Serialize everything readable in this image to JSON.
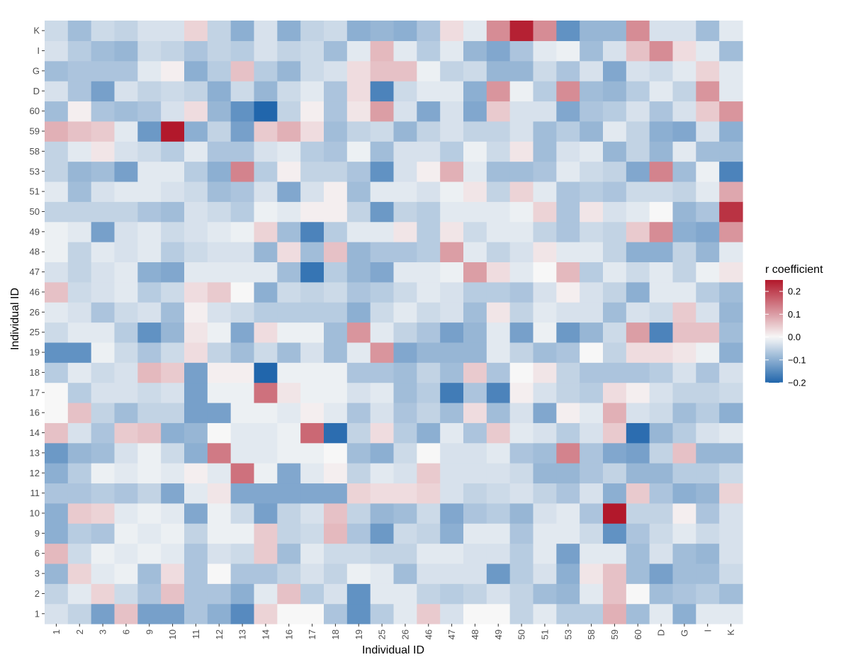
{
  "chart_data": {
    "type": "heatmap",
    "title": "",
    "xlabel": "Individual ID",
    "ylabel": "Individual ID",
    "x_categories": [
      "1",
      "2",
      "3",
      "6",
      "9",
      "10",
      "11",
      "12",
      "13",
      "14",
      "16",
      "17",
      "18",
      "19",
      "25",
      "26",
      "46",
      "47",
      "48",
      "49",
      "50",
      "51",
      "53",
      "58",
      "59",
      "60",
      "D",
      "G",
      "I",
      "K"
    ],
    "y_categories": [
      "1",
      "2",
      "3",
      "6",
      "9",
      "10",
      "11",
      "12",
      "13",
      "14",
      "16",
      "17",
      "18",
      "19",
      "25",
      "26",
      "46",
      "47",
      "48",
      "49",
      "50",
      "51",
      "53",
      "58",
      "59",
      "60",
      "D",
      "G",
      "I",
      "K"
    ],
    "legend": {
      "title": "r coefficient",
      "position": "right",
      "range": [
        -0.2,
        0.25
      ],
      "ticks": [
        0.2,
        0.1,
        0.0,
        -0.1,
        -0.2
      ],
      "tick_labels": [
        "0.2",
        "0.1",
        "0.0",
        "−0.1",
        "−0.2"
      ]
    },
    "colors": {
      "low": "#2166ac",
      "mid": "#f7f7f7",
      "high": "#b2182b",
      "axis_text": "#4d4d4d"
    },
    "values": [
      [
        -0.03,
        -0.05,
        -0.12,
        0.06,
        -0.12,
        -0.12,
        -0.07,
        -0.1,
        -0.15,
        0.04,
        0.0,
        0.0,
        -0.07,
        -0.14,
        -0.06,
        -0.02,
        0.05,
        -0.03,
        0.0,
        0.0,
        -0.05,
        -0.02,
        -0.06,
        -0.06,
        0.08,
        -0.08,
        -0.02,
        -0.1,
        -0.02,
        -0.02
      ],
      [
        -0.05,
        -0.02,
        0.04,
        -0.04,
        -0.07,
        0.06,
        -0.07,
        -0.07,
        -0.1,
        -0.02,
        0.06,
        -0.06,
        -0.03,
        -0.14,
        -0.02,
        -0.02,
        -0.05,
        -0.06,
        -0.05,
        -0.03,
        -0.05,
        -0.08,
        -0.09,
        -0.02,
        0.06,
        0.0,
        -0.08,
        -0.07,
        -0.06,
        -0.08
      ],
      [
        -0.09,
        0.04,
        -0.02,
        -0.01,
        -0.08,
        0.03,
        -0.07,
        0.0,
        -0.07,
        -0.07,
        -0.05,
        -0.03,
        -0.05,
        -0.01,
        -0.02,
        -0.08,
        -0.03,
        -0.03,
        -0.03,
        -0.13,
        -0.06,
        -0.03,
        -0.1,
        0.02,
        0.06,
        -0.08,
        -0.12,
        -0.08,
        -0.08,
        -0.04
      ],
      [
        0.07,
        -0.04,
        -0.01,
        -0.02,
        -0.01,
        -0.02,
        -0.07,
        -0.03,
        -0.04,
        0.05,
        -0.08,
        -0.02,
        -0.04,
        -0.04,
        -0.05,
        -0.05,
        -0.02,
        -0.02,
        -0.03,
        -0.03,
        -0.06,
        -0.02,
        -0.12,
        -0.02,
        -0.02,
        -0.08,
        -0.03,
        -0.08,
        -0.09,
        -0.03
      ],
      [
        -0.1,
        -0.06,
        -0.07,
        -0.01,
        -0.02,
        -0.01,
        -0.05,
        -0.01,
        -0.01,
        0.05,
        -0.05,
        -0.04,
        0.07,
        -0.07,
        -0.13,
        -0.04,
        -0.05,
        -0.1,
        -0.02,
        -0.02,
        -0.07,
        -0.02,
        -0.02,
        -0.04,
        -0.14,
        -0.07,
        -0.04,
        -0.02,
        -0.04,
        -0.03
      ],
      [
        -0.1,
        0.05,
        0.04,
        -0.02,
        -0.01,
        -0.02,
        -0.11,
        -0.01,
        -0.04,
        -0.12,
        -0.05,
        -0.03,
        0.06,
        -0.05,
        -0.09,
        -0.08,
        -0.04,
        -0.11,
        -0.07,
        -0.06,
        -0.09,
        -0.03,
        -0.02,
        -0.07,
        0.25,
        -0.05,
        -0.05,
        0.01,
        -0.07,
        -0.03
      ],
      [
        -0.07,
        -0.07,
        -0.06,
        -0.07,
        -0.05,
        -0.11,
        -0.02,
        0.02,
        -0.11,
        -0.11,
        -0.11,
        -0.11,
        -0.11,
        0.04,
        0.03,
        0.03,
        0.04,
        -0.03,
        -0.05,
        -0.04,
        -0.03,
        -0.05,
        -0.07,
        -0.03,
        -0.1,
        0.05,
        -0.07,
        -0.1,
        -0.09,
        0.04
      ],
      [
        -0.1,
        -0.06,
        -0.01,
        -0.02,
        -0.01,
        -0.02,
        0.01,
        -0.02,
        0.15,
        -0.01,
        -0.11,
        -0.02,
        0.01,
        -0.05,
        -0.02,
        -0.03,
        0.05,
        -0.03,
        -0.03,
        -0.03,
        -0.04,
        -0.09,
        -0.09,
        -0.07,
        -0.05,
        -0.09,
        -0.09,
        -0.06,
        -0.06,
        -0.04
      ],
      [
        -0.13,
        -0.09,
        -0.08,
        -0.03,
        -0.01,
        -0.04,
        -0.1,
        0.14,
        -0.02,
        -0.02,
        -0.01,
        -0.01,
        0.0,
        -0.08,
        -0.1,
        -0.04,
        0.0,
        -0.03,
        -0.03,
        -0.02,
        -0.07,
        -0.08,
        0.13,
        -0.07,
        -0.11,
        -0.12,
        -0.05,
        0.06,
        -0.09,
        -0.09
      ],
      [
        0.06,
        -0.03,
        -0.07,
        0.05,
        0.06,
        -0.1,
        -0.09,
        0.0,
        -0.02,
        -0.02,
        -0.01,
        0.16,
        -0.19,
        -0.05,
        0.03,
        -0.06,
        -0.1,
        -0.02,
        -0.07,
        0.05,
        -0.02,
        -0.03,
        -0.06,
        -0.03,
        0.05,
        -0.19,
        -0.09,
        -0.06,
        -0.03,
        -0.02
      ],
      [
        0.0,
        0.06,
        -0.05,
        -0.08,
        -0.05,
        -0.05,
        -0.12,
        -0.12,
        -0.01,
        -0.01,
        -0.02,
        0.01,
        -0.02,
        -0.07,
        -0.03,
        -0.07,
        -0.05,
        -0.08,
        0.03,
        -0.08,
        -0.03,
        -0.11,
        0.01,
        -0.02,
        0.08,
        -0.03,
        -0.04,
        -0.08,
        -0.06,
        -0.1
      ],
      [
        0.0,
        -0.06,
        -0.03,
        -0.03,
        -0.04,
        -0.03,
        -0.12,
        -0.01,
        -0.01,
        0.15,
        0.02,
        -0.01,
        -0.01,
        -0.03,
        -0.02,
        -0.08,
        -0.06,
        -0.17,
        -0.07,
        -0.16,
        0.01,
        -0.03,
        -0.05,
        -0.06,
        0.03,
        0.01,
        -0.03,
        -0.05,
        -0.05,
        -0.04
      ],
      [
        -0.06,
        -0.02,
        -0.04,
        -0.03,
        0.07,
        0.05,
        -0.12,
        0.01,
        0.01,
        -0.2,
        -0.01,
        -0.01,
        -0.01,
        -0.07,
        -0.07,
        -0.08,
        -0.05,
        -0.08,
        0.05,
        -0.07,
        0.0,
        0.02,
        -0.05,
        -0.07,
        -0.07,
        -0.07,
        -0.06,
        -0.03,
        -0.07,
        -0.03
      ],
      [
        -0.14,
        -0.14,
        -0.01,
        -0.04,
        -0.07,
        -0.04,
        0.03,
        -0.05,
        -0.08,
        -0.04,
        -0.08,
        -0.03,
        -0.08,
        -0.02,
        0.11,
        -0.11,
        -0.09,
        -0.09,
        -0.09,
        -0.02,
        -0.05,
        -0.08,
        -0.07,
        0.0,
        -0.05,
        0.03,
        0.03,
        0.02,
        -0.01,
        -0.1
      ],
      [
        -0.04,
        -0.02,
        -0.02,
        -0.06,
        -0.14,
        -0.09,
        0.02,
        -0.01,
        -0.11,
        0.03,
        -0.01,
        -0.01,
        -0.08,
        0.11,
        -0.02,
        -0.05,
        -0.07,
        -0.12,
        -0.09,
        -0.02,
        -0.12,
        -0.01,
        -0.13,
        -0.09,
        -0.04,
        0.1,
        -0.16,
        0.06,
        0.06,
        -0.08
      ],
      [
        -0.02,
        -0.03,
        -0.07,
        -0.04,
        -0.03,
        -0.08,
        0.01,
        -0.03,
        -0.04,
        -0.06,
        -0.06,
        -0.06,
        -0.06,
        -0.1,
        -0.04,
        -0.02,
        -0.04,
        -0.03,
        -0.08,
        0.02,
        -0.05,
        -0.02,
        -0.03,
        -0.03,
        -0.08,
        -0.03,
        -0.04,
        0.05,
        -0.03,
        -0.09
      ],
      [
        0.06,
        -0.04,
        -0.03,
        -0.02,
        -0.06,
        -0.04,
        0.03,
        0.05,
        0.0,
        -0.1,
        -0.04,
        -0.05,
        -0.04,
        -0.07,
        -0.06,
        -0.04,
        -0.02,
        -0.03,
        -0.06,
        -0.06,
        -0.07,
        -0.03,
        0.01,
        -0.03,
        -0.05,
        -0.1,
        -0.02,
        -0.02,
        -0.06,
        -0.08
      ],
      [
        -0.03,
        -0.05,
        -0.03,
        -0.02,
        -0.1,
        -0.11,
        -0.02,
        -0.02,
        -0.02,
        -0.02,
        -0.08,
        -0.18,
        -0.06,
        -0.09,
        -0.11,
        -0.02,
        -0.02,
        -0.01,
        0.1,
        0.03,
        -0.02,
        0.0,
        0.07,
        -0.06,
        -0.02,
        -0.04,
        -0.02,
        -0.05,
        -0.01,
        0.02
      ],
      [
        -0.01,
        -0.05,
        -0.02,
        -0.03,
        -0.02,
        -0.06,
        -0.04,
        -0.03,
        -0.03,
        -0.09,
        0.03,
        -0.08,
        0.06,
        -0.09,
        -0.07,
        -0.07,
        -0.06,
        0.1,
        -0.02,
        -0.05,
        -0.03,
        0.02,
        -0.02,
        -0.02,
        -0.05,
        -0.1,
        -0.1,
        -0.05,
        -0.09,
        -0.02
      ],
      [
        -0.01,
        -0.02,
        -0.12,
        -0.03,
        -0.02,
        -0.04,
        -0.03,
        -0.02,
        -0.01,
        0.04,
        -0.08,
        -0.16,
        -0.06,
        -0.02,
        -0.02,
        0.02,
        -0.06,
        0.02,
        -0.04,
        -0.02,
        -0.02,
        -0.05,
        -0.07,
        -0.04,
        -0.05,
        0.05,
        0.12,
        -0.1,
        -0.11,
        0.11
      ],
      [
        -0.05,
        -0.05,
        -0.05,
        -0.05,
        -0.07,
        -0.08,
        -0.03,
        -0.04,
        -0.06,
        -0.01,
        -0.02,
        0.01,
        0.01,
        -0.05,
        -0.13,
        -0.05,
        -0.06,
        -0.02,
        -0.02,
        -0.02,
        -0.01,
        0.04,
        -0.07,
        0.02,
        -0.03,
        -0.02,
        0.0,
        -0.09,
        -0.07,
        0.22
      ],
      [
        -0.02,
        -0.08,
        -0.03,
        -0.02,
        -0.02,
        -0.03,
        -0.04,
        -0.08,
        -0.07,
        -0.03,
        -0.11,
        -0.03,
        0.01,
        -0.08,
        -0.02,
        -0.02,
        -0.03,
        -0.01,
        0.02,
        -0.05,
        0.04,
        -0.02,
        -0.07,
        -0.06,
        -0.07,
        -0.04,
        -0.04,
        -0.05,
        -0.02,
        0.09
      ],
      [
        -0.05,
        -0.09,
        -0.08,
        -0.12,
        -0.02,
        -0.02,
        -0.06,
        -0.1,
        0.13,
        -0.06,
        0.01,
        -0.05,
        -0.05,
        -0.07,
        -0.14,
        -0.03,
        0.01,
        0.08,
        -0.02,
        -0.08,
        -0.08,
        -0.07,
        -0.02,
        -0.04,
        -0.05,
        -0.11,
        0.13,
        -0.08,
        -0.01,
        -0.16
      ],
      [
        -0.05,
        -0.02,
        0.02,
        -0.03,
        -0.04,
        -0.06,
        -0.02,
        -0.07,
        -0.07,
        -0.03,
        -0.02,
        -0.06,
        -0.07,
        -0.01,
        -0.08,
        -0.03,
        -0.03,
        -0.06,
        -0.01,
        -0.04,
        0.02,
        -0.08,
        -0.03,
        -0.02,
        -0.09,
        -0.05,
        -0.09,
        -0.02,
        -0.08,
        -0.08
      ],
      [
        0.08,
        0.06,
        0.05,
        -0.02,
        -0.13,
        0.25,
        -0.1,
        -0.05,
        -0.12,
        0.05,
        0.08,
        0.03,
        -0.08,
        -0.05,
        -0.04,
        -0.09,
        -0.05,
        -0.03,
        -0.05,
        -0.05,
        -0.03,
        -0.08,
        -0.06,
        -0.09,
        -0.02,
        -0.05,
        -0.1,
        -0.11,
        -0.03,
        -0.1
      ],
      [
        -0.08,
        0.01,
        -0.07,
        -0.08,
        -0.07,
        -0.03,
        0.03,
        -0.09,
        -0.14,
        -0.2,
        -0.05,
        0.01,
        -0.07,
        0.02,
        0.1,
        -0.03,
        -0.11,
        -0.03,
        -0.11,
        0.05,
        -0.03,
        -0.03,
        -0.11,
        -0.07,
        -0.06,
        -0.03,
        -0.07,
        -0.03,
        0.05,
        0.11
      ],
      [
        -0.03,
        -0.07,
        -0.12,
        -0.03,
        -0.05,
        -0.04,
        -0.05,
        -0.1,
        -0.04,
        -0.09,
        -0.04,
        -0.02,
        -0.07,
        0.03,
        -0.16,
        -0.04,
        -0.02,
        -0.02,
        -0.1,
        0.11,
        -0.01,
        -0.06,
        0.12,
        -0.08,
        -0.09,
        -0.06,
        -0.02,
        -0.05,
        0.11,
        -0.02
      ],
      [
        -0.08,
        -0.07,
        -0.07,
        -0.07,
        -0.02,
        0.01,
        -0.1,
        -0.06,
        0.06,
        -0.06,
        -0.09,
        -0.04,
        -0.03,
        0.03,
        0.06,
        0.06,
        -0.01,
        -0.05,
        -0.04,
        -0.09,
        -0.09,
        -0.04,
        -0.07,
        -0.03,
        -0.11,
        -0.03,
        -0.04,
        -0.02,
        0.04,
        -0.02
      ],
      [
        -0.03,
        -0.06,
        -0.08,
        -0.09,
        -0.04,
        -0.05,
        -0.07,
        -0.05,
        -0.06,
        -0.03,
        -0.05,
        -0.04,
        -0.08,
        -0.02,
        0.07,
        -0.02,
        -0.06,
        -0.02,
        -0.09,
        -0.11,
        -0.07,
        -0.02,
        -0.01,
        -0.08,
        -0.03,
        0.06,
        0.12,
        0.03,
        -0.02,
        -0.08
      ],
      [
        -0.04,
        -0.08,
        -0.04,
        -0.05,
        -0.03,
        -0.03,
        0.04,
        -0.05,
        -0.1,
        -0.03,
        -0.1,
        -0.05,
        -0.04,
        -0.1,
        -0.09,
        -0.1,
        -0.07,
        0.03,
        -0.02,
        0.12,
        0.24,
        0.12,
        -0.14,
        -0.09,
        -0.09,
        0.12,
        -0.03,
        -0.03,
        -0.08,
        -0.02
      ]
    ]
  }
}
